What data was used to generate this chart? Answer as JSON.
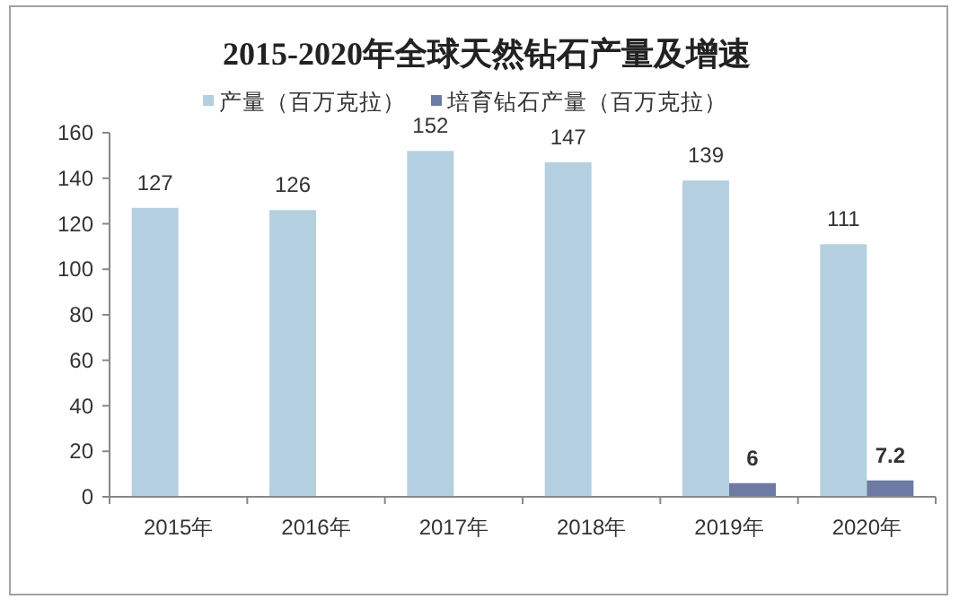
{
  "chart_data": {
    "type": "bar",
    "title": "2015-2020年全球天然钻石产量及增速",
    "categories": [
      "2015年",
      "2016年",
      "2017年",
      "2018年",
      "2019年",
      "2020年"
    ],
    "series": [
      {
        "name": "产量（百万克拉）",
        "color": "#b4d0e0",
        "values": [
          127,
          126,
          152,
          147,
          139,
          111
        ]
      },
      {
        "name": "培育钻石产量（百万克拉）",
        "color": "#6d7aa3",
        "values": [
          null,
          null,
          null,
          null,
          6,
          7.2
        ]
      }
    ],
    "ylim": [
      0,
      160
    ],
    "yticks": [
      0,
      20,
      40,
      60,
      80,
      100,
      120,
      140,
      160
    ],
    "data_labels": true,
    "legend": "top",
    "grid": false
  }
}
